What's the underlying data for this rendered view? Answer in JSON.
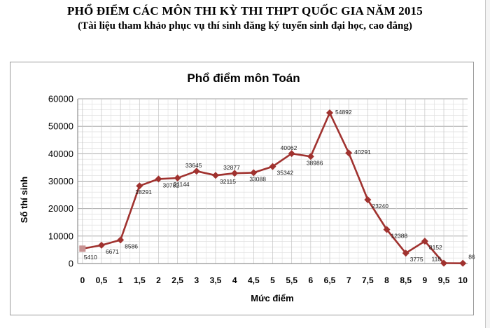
{
  "document": {
    "title": "PHỔ ĐIỂM CÁC MÔN THI KỲ THI THPT QUỐC GIA NĂM 2015",
    "subtitle": "(Tài liệu tham khảo phục vụ thí sinh đăng ký tuyển sinh đại học, cao đẳng)"
  },
  "chart_data": {
    "type": "line",
    "title": "Phổ điểm môn Toán",
    "xlabel": "Mức điểm",
    "ylabel": "Số thí sinh",
    "categories": [
      "0",
      "0,5",
      "1",
      "1,5",
      "2",
      "2,5",
      "3",
      "3,5",
      "4",
      "4,5",
      "5",
      "5,5",
      "6",
      "6,5",
      "7",
      "7,5",
      "8",
      "8,5",
      "9",
      "9,5",
      "10"
    ],
    "values": [
      5410,
      6671,
      8586,
      28291,
      30782,
      31144,
      33645,
      32115,
      32877,
      33088,
      35342,
      40062,
      38986,
      54892,
      40291,
      23240,
      12388,
      3775,
      8152,
      118,
      86
    ],
    "data_labels": [
      "5410",
      "6671",
      "8586",
      "28291",
      "30782",
      "31144",
      "33645",
      "32115",
      "32877",
      "33088",
      "35342",
      "40062",
      "38986",
      "54892",
      "40291",
      "23240",
      "12388",
      "3775",
      "8152",
      "118",
      "86"
    ],
    "y_ticks": [
      "0",
      "10000",
      "20000",
      "30000",
      "40000",
      "50000",
      "60000"
    ],
    "ylim": [
      0,
      60000
    ],
    "grid": true,
    "legend": "none",
    "line_color": "#a0322f",
    "marker_color": "#a0322f",
    "first_marker_color": "#c79292"
  }
}
